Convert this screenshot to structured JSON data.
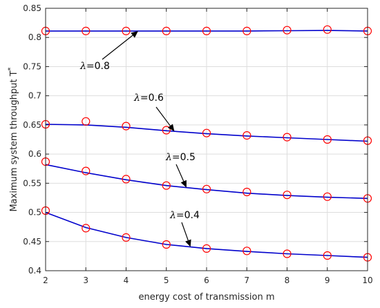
{
  "chart_data": {
    "type": "line",
    "title": "",
    "xlabel": "energy cost of transmission m",
    "ylabel": "Maximum system throughput T",
    "ylabel_superscript": "*",
    "xlim": [
      2,
      10
    ],
    "ylim": [
      0.4,
      0.85
    ],
    "x_ticks": [
      "2",
      "3",
      "4",
      "5",
      "6",
      "7",
      "8",
      "9",
      "10"
    ],
    "y_ticks": [
      "0.4",
      "0.45",
      "0.5",
      "0.55",
      "0.6",
      "0.65",
      "0.7",
      "0.75",
      "0.8",
      "0.85"
    ],
    "grid": true,
    "x": [
      2,
      3,
      4,
      5,
      6,
      7,
      8,
      9,
      10
    ],
    "line_color": "#0000cc",
    "marker_color": "#ff0000",
    "series": [
      {
        "label_symbol": "λ",
        "label_value": "=0.8",
        "curve": [
          0.811,
          0.811,
          0.811,
          0.811,
          0.811,
          0.811,
          0.8115,
          0.812,
          0.811
        ],
        "markers": [
          0.811,
          0.811,
          0.811,
          0.811,
          0.811,
          0.811,
          0.8125,
          0.8135,
          0.811
        ]
      },
      {
        "label_symbol": "λ",
        "label_value": "=0.6",
        "curve": [
          0.651,
          0.65,
          0.646,
          0.64,
          0.635,
          0.631,
          0.628,
          0.625,
          0.622
        ],
        "markers": [
          0.651,
          0.656,
          0.648,
          0.641,
          0.636,
          0.632,
          0.629,
          0.625,
          0.623
        ]
      },
      {
        "label_symbol": "λ",
        "label_value": "=0.5",
        "curve": [
          0.582,
          0.568,
          0.556,
          0.546,
          0.539,
          0.533,
          0.529,
          0.526,
          0.524
        ],
        "markers": [
          0.587,
          0.571,
          0.557,
          0.546,
          0.54,
          0.535,
          0.53,
          0.527,
          0.524
        ]
      },
      {
        "label_symbol": "λ",
        "label_value": "=0.4",
        "curve": [
          0.5,
          0.474,
          0.457,
          0.445,
          0.438,
          0.433,
          0.429,
          0.426,
          0.423
        ],
        "markers": [
          0.503,
          0.473,
          0.457,
          0.445,
          0.438,
          0.434,
          0.429,
          0.426,
          0.423
        ]
      }
    ],
    "annotations": [
      {
        "series_index": 0,
        "text_symbol": "λ",
        "text_value": "=0.8",
        "points_to_x": 4.3
      },
      {
        "series_index": 1,
        "text_symbol": "λ",
        "text_value": "=0.6",
        "points_to_x": 5.2
      },
      {
        "series_index": 2,
        "text_symbol": "λ",
        "text_value": "=0.5",
        "points_to_x": 5.5
      },
      {
        "series_index": 3,
        "text_symbol": "λ",
        "text_value": "=0.4",
        "points_to_x": 5.6
      }
    ]
  }
}
